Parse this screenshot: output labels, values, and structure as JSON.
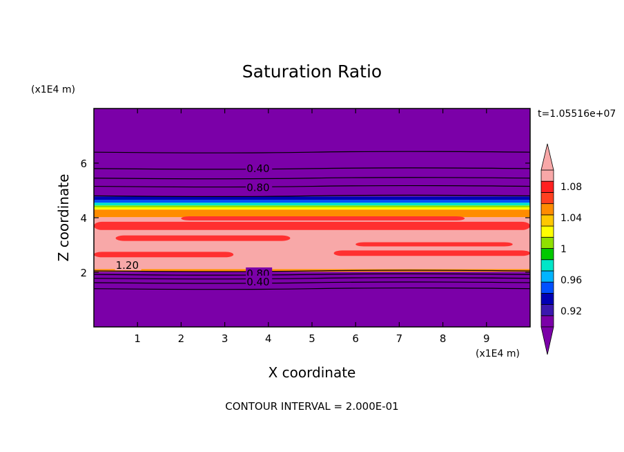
{
  "chart_data": {
    "type": "contour",
    "title": "Saturation Ratio",
    "xlabel": "X coordinate",
    "ylabel": "Z coordinate",
    "x_unit": "(x1E4 m)",
    "y_unit": "(x1E4 m)",
    "time_label": "t=1.05516e+07",
    "footer": "CONTOUR INTERVAL = 2.000E-01",
    "xlim": [
      0,
      10
    ],
    "ylim": [
      0,
      8
    ],
    "x_ticks": [
      1,
      2,
      3,
      4,
      5,
      6,
      7,
      8,
      9
    ],
    "y_ticks": [
      2,
      4,
      6
    ],
    "contour_labels": [
      {
        "text": "0.40",
        "x": 3.5,
        "z": 5.8
      },
      {
        "text": "0.80",
        "x": 3.5,
        "z": 5.1
      },
      {
        "text": "1.20",
        "x": 0.5,
        "z": 2.25
      },
      {
        "text": "0.80",
        "x": 3.5,
        "z": 1.95
      },
      {
        "text": "0.40",
        "x": 3.5,
        "z": 1.65
      }
    ],
    "colorbar": {
      "levels": [
        "0.92",
        "0.96",
        "1",
        "1.04",
        "1.08"
      ],
      "colors": [
        "#7b00a8",
        "#3a18ae",
        "#0000b4",
        "#0050ff",
        "#00b4ff",
        "#00e6c8",
        "#00c800",
        "#90e000",
        "#ffff00",
        "#ffc800",
        "#ff8c00",
        "#ff4020",
        "#ff2020",
        "#f8a8a8"
      ]
    },
    "bands": [
      {
        "z0": 0.0,
        "z1": 2.02,
        "color": "#7b00a8"
      },
      {
        "z0": 2.02,
        "z1": 2.12,
        "color": "#ff8c00"
      },
      {
        "z0": 2.12,
        "z1": 4.02,
        "color": "#f8a8a8"
      },
      {
        "z0": 4.02,
        "z1": 4.3,
        "color": "#ff8c00"
      },
      {
        "z0": 4.3,
        "z1": 4.38,
        "color": "#ffff00"
      },
      {
        "z0": 4.38,
        "z1": 4.45,
        "color": "#90e000"
      },
      {
        "z0": 4.45,
        "z1": 4.55,
        "color": "#00e6c8"
      },
      {
        "z0": 4.55,
        "z1": 4.65,
        "color": "#0050ff"
      },
      {
        "z0": 4.65,
        "z1": 4.78,
        "color": "#0000b4"
      },
      {
        "z0": 4.78,
        "z1": 8.0,
        "color": "#7b00a8"
      }
    ],
    "red_streaks": [
      {
        "z0": 3.55,
        "z1": 3.85,
        "x0": 0.0,
        "x1": 10.0
      },
      {
        "z0": 3.15,
        "z1": 3.35,
        "x0": 0.5,
        "x1": 4.5
      },
      {
        "z0": 2.95,
        "z1": 3.1,
        "x0": 6.0,
        "x1": 9.6
      },
      {
        "z0": 2.55,
        "z1": 2.75,
        "x0": 0.0,
        "x1": 3.2
      },
      {
        "z0": 2.6,
        "z1": 2.8,
        "x0": 5.5,
        "x1": 10.0
      },
      {
        "z0": 3.9,
        "z1": 4.05,
        "x0": 2.0,
        "x1": 8.5
      }
    ],
    "contour_lines_z": [
      6.4,
      5.8,
      5.45,
      5.15,
      4.8,
      2.05,
      1.92,
      1.78,
      1.62,
      1.4
    ]
  }
}
